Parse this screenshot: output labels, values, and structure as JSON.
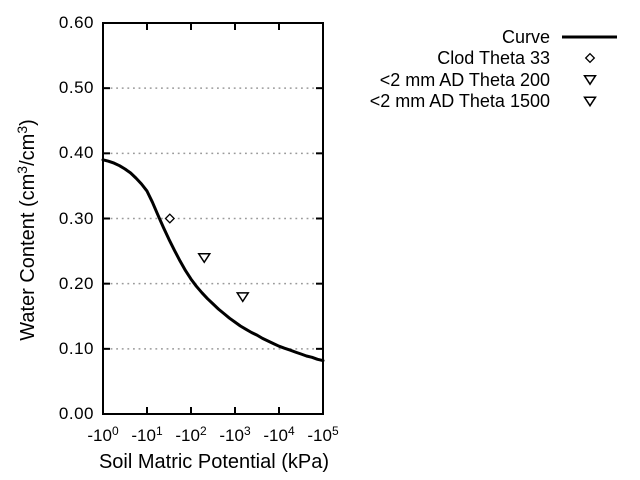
{
  "figure": {
    "background": "#ffffff",
    "line_color": "#000000",
    "grid_color": "#9a9a9a",
    "marker_fill": "#ffffff"
  },
  "chart_data": {
    "type": "line",
    "title": "",
    "xlabel": "Soil Matric Potential (kPa)",
    "ylabel": "Water Content (cm3/cm3)",
    "ylabel_parts": [
      {
        "t": "Water Content (cm"
      },
      {
        "t": "3",
        "sup": true
      },
      {
        "t": "/cm"
      },
      {
        "t": "3",
        "sup": true
      },
      {
        "t": ")"
      }
    ],
    "x_scale": "negative-log10",
    "x_range_kpa": [
      -1,
      -100000
    ],
    "y_range": [
      0.0,
      0.6
    ],
    "grid": "horizontal-dotted",
    "legend_position": "top-right-outside",
    "x_ticks": [
      {
        "kpa": -1,
        "base": "-10",
        "exp": "0"
      },
      {
        "kpa": -10,
        "base": "-10",
        "exp": "1"
      },
      {
        "kpa": -100,
        "base": "-10",
        "exp": "2"
      },
      {
        "kpa": -1000,
        "base": "-10",
        "exp": "3"
      },
      {
        "kpa": -10000,
        "base": "-10",
        "exp": "4"
      },
      {
        "kpa": -100000,
        "base": "-10",
        "exp": "5"
      }
    ],
    "y_ticks": [
      {
        "value": 0.0,
        "label": "0.00"
      },
      {
        "value": 0.1,
        "label": "0.10"
      },
      {
        "value": 0.2,
        "label": "0.20"
      },
      {
        "value": 0.3,
        "label": "0.30"
      },
      {
        "value": 0.4,
        "label": "0.40"
      },
      {
        "value": 0.5,
        "label": "0.50"
      },
      {
        "value": 0.6,
        "label": "0.60"
      }
    ],
    "grid_y_values": [
      0.1,
      0.2,
      0.3,
      0.4,
      0.5
    ],
    "series": [
      {
        "name": "Curve",
        "type": "line",
        "marker": "line-sample",
        "x_kpa": [
          -1,
          -1.33,
          -1.78,
          -2.37,
          -3.16,
          -4.22,
          -5.62,
          -7.5,
          -10,
          -13.3,
          -17.8,
          -23.7,
          -31.6,
          -42.2,
          -56.2,
          -75,
          -100,
          -133,
          -178,
          -237,
          -316,
          -422,
          -562,
          -750,
          -1000,
          -1330,
          -1780,
          -2370,
          -3160,
          -4220,
          -5620,
          -7500,
          -10000,
          -13300,
          -17800,
          -23700,
          -31600,
          -42200,
          -56200,
          -75000,
          -100000
        ],
        "y": [
          0.39,
          0.388,
          0.385,
          0.381,
          0.376,
          0.37,
          0.362,
          0.353,
          0.342,
          0.325,
          0.305,
          0.286,
          0.268,
          0.251,
          0.235,
          0.22,
          0.207,
          0.196,
          0.186,
          0.177,
          0.169,
          0.161,
          0.154,
          0.147,
          0.141,
          0.135,
          0.13,
          0.125,
          0.121,
          0.116,
          0.112,
          0.108,
          0.104,
          0.101,
          0.098,
          0.095,
          0.092,
          0.089,
          0.087,
          0.084,
          0.082
        ]
      },
      {
        "name": "Clod Theta 33",
        "type": "scatter",
        "marker": "diamond-open",
        "x_kpa": [
          -33
        ],
        "y": [
          0.3
        ]
      },
      {
        "name": "<2 mm AD Theta 200",
        "type": "scatter",
        "marker": "triangle-down-open",
        "x_kpa": [
          -200
        ],
        "y": [
          0.24
        ]
      },
      {
        "name": "<2 mm AD Theta 1500",
        "type": "scatter",
        "marker": "triangle-down-open",
        "x_kpa": [
          -1500
        ],
        "y": [
          0.18
        ]
      }
    ]
  }
}
